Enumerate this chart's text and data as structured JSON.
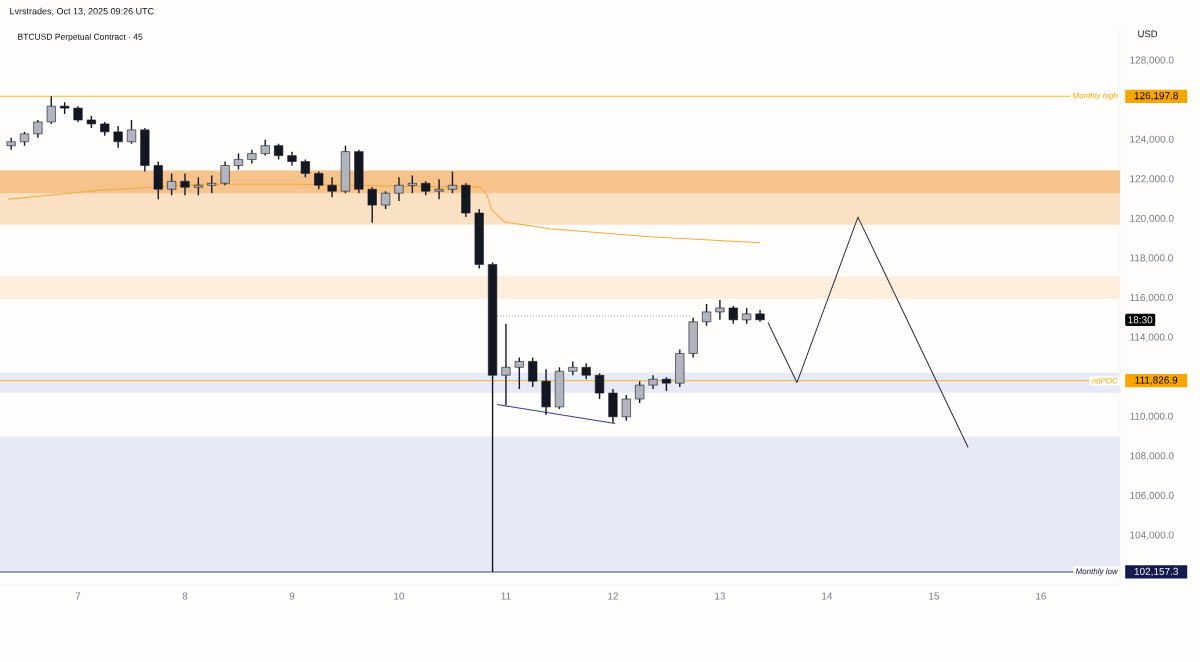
{
  "chart_data": {
    "type": "candlestick",
    "title": "Lvrstrades, Oct 13, 2025 09:26 UTC",
    "subtitle": "BTCUSD Perpetual Contract · 45",
    "ylabel": "USD",
    "x": [
      "2025-10-06T09:00",
      "2025-10-06T12:00",
      "2025-10-06T15:00",
      "2025-10-06T18:00",
      "2025-10-06T21:00",
      "2025-10-07T00:00",
      "2025-10-07T03:00",
      "2025-10-07T06:00",
      "2025-10-07T09:00",
      "2025-10-07T12:00",
      "2025-10-07T15:00",
      "2025-10-07T18:00",
      "2025-10-07T21:00",
      "2025-10-08T00:00",
      "2025-10-08T03:00",
      "2025-10-08T06:00",
      "2025-10-08T09:00",
      "2025-10-08T12:00",
      "2025-10-08T15:00",
      "2025-10-08T18:00",
      "2025-10-08T21:00",
      "2025-10-09T00:00",
      "2025-10-09T03:00",
      "2025-10-09T06:00",
      "2025-10-09T09:00",
      "2025-10-09T12:00",
      "2025-10-09T15:00",
      "2025-10-09T18:00",
      "2025-10-09T21:00",
      "2025-10-10T00:00",
      "2025-10-10T03:00",
      "2025-10-10T06:00",
      "2025-10-10T09:00",
      "2025-10-10T12:00",
      "2025-10-10T15:00",
      "2025-10-10T18:00",
      "2025-10-10T21:00",
      "2025-10-11T00:00",
      "2025-10-11T03:00",
      "2025-10-11T06:00",
      "2025-10-11T09:00",
      "2025-10-11T12:00",
      "2025-10-11T15:00",
      "2025-10-11T18:00",
      "2025-10-11T21:00",
      "2025-10-12T00:00",
      "2025-10-12T03:00",
      "2025-10-12T06:00",
      "2025-10-12T09:00",
      "2025-10-12T12:00",
      "2025-10-12T15:00",
      "2025-10-12T18:00",
      "2025-10-12T21:00",
      "2025-10-13T00:00",
      "2025-10-13T03:00",
      "2025-10-13T06:00",
      "2025-10-13T09:00"
    ],
    "ohlc": [
      [
        123700,
        124100,
        123500,
        123900
      ],
      [
        123900,
        124400,
        123700,
        124300
      ],
      [
        124300,
        125000,
        124100,
        124900
      ],
      [
        124900,
        126197.8,
        124800,
        125700
      ],
      [
        125700,
        125900,
        125300,
        125600
      ],
      [
        125600,
        125700,
        124900,
        125000
      ],
      [
        125000,
        125200,
        124600,
        124800
      ],
      [
        124800,
        124900,
        124200,
        124400
      ],
      [
        124400,
        124700,
        123600,
        123900
      ],
      [
        123900,
        125000,
        123800,
        124500
      ],
      [
        124500,
        124600,
        122400,
        122700
      ],
      [
        122700,
        122900,
        121000,
        121500
      ],
      [
        121500,
        122300,
        121200,
        121900
      ],
      [
        121900,
        122300,
        121200,
        121600
      ],
      [
        121600,
        122100,
        121200,
        121700
      ],
      [
        121700,
        122200,
        121300,
        121800
      ],
      [
        121800,
        122900,
        121700,
        122700
      ],
      [
        122700,
        123300,
        122500,
        123000
      ],
      [
        123000,
        123500,
        122800,
        123300
      ],
      [
        123300,
        124000,
        123200,
        123700
      ],
      [
        123700,
        123800,
        123000,
        123200
      ],
      [
        123200,
        123400,
        122700,
        122900
      ],
      [
        122900,
        123000,
        122100,
        122300
      ],
      [
        122300,
        122400,
        121500,
        121700
      ],
      [
        121700,
        122100,
        121100,
        121400
      ],
      [
        121400,
        123700,
        121300,
        123400
      ],
      [
        123400,
        123500,
        121300,
        121500
      ],
      [
        121500,
        121600,
        119800,
        120700
      ],
      [
        120700,
        121400,
        120500,
        121300
      ],
      [
        121300,
        122100,
        120900,
        121700
      ],
      [
        121700,
        122200,
        121300,
        121800
      ],
      [
        121800,
        121900,
        121200,
        121400
      ],
      [
        121400,
        122000,
        121000,
        121500
      ],
      [
        121500,
        122400,
        121300,
        121700
      ],
      [
        121700,
        121800,
        120100,
        120300
      ],
      [
        120300,
        120500,
        117500,
        117700
      ],
      [
        117700,
        117800,
        102157.3,
        112100
      ],
      [
        112100,
        114700,
        110600,
        112500
      ],
      [
        112500,
        113000,
        111400,
        112800
      ],
      [
        112800,
        113000,
        111500,
        111800
      ],
      [
        111800,
        112400,
        110100,
        110500
      ],
      [
        110500,
        112500,
        110400,
        112300
      ],
      [
        112300,
        112800,
        112100,
        112500
      ],
      [
        112500,
        112700,
        111900,
        112100
      ],
      [
        112100,
        112200,
        110900,
        111200
      ],
      [
        111200,
        111400,
        109700,
        110000
      ],
      [
        110000,
        111100,
        109800,
        110900
      ],
      [
        110900,
        111800,
        110700,
        111600
      ],
      [
        111600,
        112100,
        111400,
        111900
      ],
      [
        111900,
        112000,
        111300,
        111700
      ],
      [
        111700,
        113400,
        111500,
        113200
      ],
      [
        113200,
        115000,
        113000,
        114800
      ],
      [
        114800,
        115700,
        114600,
        115300
      ],
      [
        115300,
        115900,
        114900,
        115500
      ],
      [
        115500,
        115600,
        114700,
        114900
      ],
      [
        114900,
        115500,
        114700,
        115200
      ],
      [
        115200,
        115400,
        114800,
        114900
      ]
    ],
    "series": [
      {
        "type": "line",
        "color": "#f2a93b",
        "line_style": "solid",
        "x": [
          "2025-10-06T08:18",
          "2025-10-07T04:57",
          "2025-10-08T03:22",
          "2025-10-09T01:48",
          "2025-10-10T00:13",
          "2025-10-10T18:10",
          "2025-10-10T19:44",
          "2025-10-10T20:51",
          "2025-10-10T23:47",
          "2025-10-11T09:52",
          "2025-10-12T08:18",
          "2025-10-13T08:59"
        ],
        "values": [
          121000,
          121450,
          121750,
          121750,
          121650,
          121600,
          121200,
          120450,
          119840,
          119500,
          119100,
          118800
        ]
      },
      {
        "type": "line",
        "color": "#2a2e39",
        "line_style": "solid",
        "x": [
          "2025-10-13T10:48",
          "2025-10-13T17:17",
          "2025-10-14T06:58",
          "2025-10-15T07:41"
        ],
        "values": [
          114750,
          111730,
          120090,
          108450
        ]
      },
      {
        "type": "line",
        "color": "#303f8f",
        "line_style": "solid",
        "x": [
          "2025-10-10T21:59",
          "2025-10-12T00:29"
        ],
        "values": [
          110620,
          109660
        ]
      },
      {
        "type": "line",
        "color": "#9598a1",
        "line_style": "dotted",
        "x": [
          "2025-10-10T21:21",
          "2025-10-12T17:17"
        ],
        "values": [
          115100,
          115100
        ]
      }
    ],
    "bands": [
      {
        "axis": "y",
        "from": 119700,
        "to": 122450,
        "color": "#fbe1c4"
      },
      {
        "axis": "y",
        "from": 121300,
        "to": 122450,
        "color": "#f6c38d"
      },
      {
        "axis": "y",
        "from": 115950,
        "to": 117100,
        "color": "#fdeedd"
      },
      {
        "axis": "y",
        "from": 111220,
        "to": 112230,
        "color": "#e6e9f6"
      },
      {
        "axis": "y",
        "from": 102157.3,
        "to": 109000,
        "color": "#e6e9f6"
      }
    ],
    "ref_lines": [
      {
        "axis": "y",
        "value": 126197.8,
        "label": "Monthly high",
        "color": "#f7a600"
      },
      {
        "axis": "y",
        "value": 111826.9,
        "label": "ndPOC",
        "color": "#f7a600"
      },
      {
        "axis": "y",
        "value": 102157.3,
        "label": "Monthly low",
        "color": "#131a4d"
      }
    ],
    "annotations": [
      "18:30",
      "126,197.8",
      "111,826.9",
      "102,157.3"
    ],
    "xlim": [
      "2025-10-06T06:30",
      "2025-10-16T17:45"
    ],
    "xticks": [
      {
        "value": "2025-10-07",
        "label": "7"
      },
      {
        "value": "2025-10-08",
        "label": "8"
      },
      {
        "value": "2025-10-09",
        "label": "9"
      },
      {
        "value": "2025-10-10",
        "label": "10"
      },
      {
        "value": "2025-10-11",
        "label": "11"
      },
      {
        "value": "2025-10-12",
        "label": "12"
      },
      {
        "value": "2025-10-13",
        "label": "13"
      },
      {
        "value": "2025-10-14",
        "label": "14"
      },
      {
        "value": "2025-10-15",
        "label": "15"
      },
      {
        "value": "2025-10-16",
        "label": "16"
      }
    ],
    "ylim": [
      101500,
      129800
    ],
    "yticks": [
      {
        "value": 104000,
        "label": "104,000.0"
      },
      {
        "value": 106000,
        "label": "106,000.0"
      },
      {
        "value": 108000,
        "label": "108,000.0"
      },
      {
        "value": 110000,
        "label": "110,000.0"
      },
      {
        "value": 114000,
        "label": "114,000.0"
      },
      {
        "value": 116000,
        "label": "116,000.0"
      },
      {
        "value": 118000,
        "label": "118,000.0"
      },
      {
        "value": 120000,
        "label": "120,000.0"
      },
      {
        "value": 122000,
        "label": "122,000.0"
      },
      {
        "value": 124000,
        "label": "124,000.0"
      },
      {
        "value": 128000,
        "label": "128,000.0"
      }
    ]
  }
}
